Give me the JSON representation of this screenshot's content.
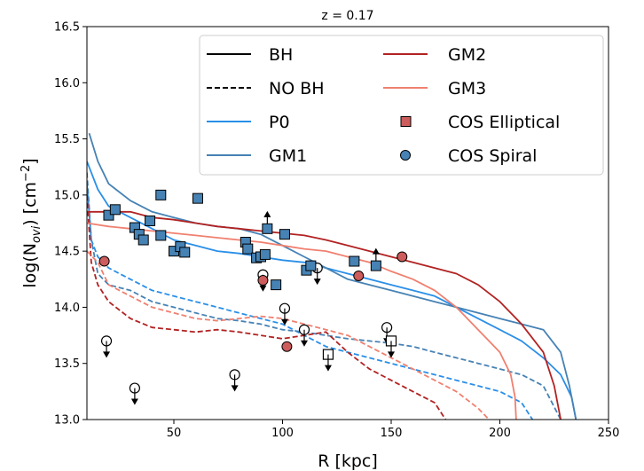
{
  "chart_data": {
    "type": "line",
    "title": "z = 0.17",
    "xlabel": "R [kpc]",
    "ylabel_parts": [
      "log(N",
      "ovi",
      ") [cm",
      "−2",
      "]"
    ],
    "xlim": [
      10,
      250
    ],
    "ylim": [
      13.0,
      16.5
    ],
    "xticks": [
      50,
      100,
      150,
      200,
      250
    ],
    "yticks": [
      13.0,
      13.5,
      14.0,
      14.5,
      15.0,
      15.5,
      16.0,
      16.5
    ],
    "ytick_labels": [
      "13.0",
      "13.5",
      "14.0",
      "14.5",
      "15.0",
      "15.5",
      "16.0",
      "16.5"
    ],
    "grid": false,
    "legend_position": "top-right",
    "legend": [
      {
        "label": "BH",
        "kind": "line-solid",
        "color": "#000000"
      },
      {
        "label": "NO BH",
        "kind": "line-dashed",
        "color": "#000000"
      },
      {
        "label": "P0",
        "kind": "line-solid",
        "color": "#2a8fe8"
      },
      {
        "label": "GM1",
        "kind": "line-solid",
        "color": "#4682b4"
      },
      {
        "label": "GM2",
        "kind": "line-solid",
        "color": "#b22222"
      },
      {
        "label": "GM3",
        "kind": "line-solid",
        "color": "#f08070"
      },
      {
        "label": "COS Elliptical",
        "kind": "square",
        "color": "#cd5c5c"
      },
      {
        "label": "COS Spiral",
        "kind": "circle",
        "color": "#4682b4"
      }
    ],
    "series": [
      {
        "name": "P0",
        "style": "solid",
        "color": "#2a8fe8",
        "points": [
          [
            10,
            15.3
          ],
          [
            15,
            15.05
          ],
          [
            20,
            14.9
          ],
          [
            30,
            14.8
          ],
          [
            40,
            14.7
          ],
          [
            50,
            14.6
          ],
          [
            60,
            14.55
          ],
          [
            70,
            14.5
          ],
          [
            80,
            14.48
          ],
          [
            90,
            14.45
          ],
          [
            100,
            14.42
          ],
          [
            110,
            14.4
          ],
          [
            120,
            14.35
          ],
          [
            130,
            14.3
          ],
          [
            140,
            14.25
          ],
          [
            150,
            14.2
          ],
          [
            160,
            14.15
          ],
          [
            170,
            14.1
          ],
          [
            180,
            14.0
          ],
          [
            190,
            13.9
          ],
          [
            200,
            13.8
          ],
          [
            210,
            13.7
          ],
          [
            220,
            13.55
          ],
          [
            228,
            13.4
          ],
          [
            233,
            13.2
          ],
          [
            235,
            13.0
          ]
        ]
      },
      {
        "name": "P0",
        "style": "dashed",
        "color": "#2a8fe8",
        "points": [
          [
            10,
            15.1
          ],
          [
            12,
            14.6
          ],
          [
            15,
            14.45
          ],
          [
            20,
            14.35
          ],
          [
            30,
            14.25
          ],
          [
            40,
            14.15
          ],
          [
            50,
            14.1
          ],
          [
            60,
            14.05
          ],
          [
            70,
            14.0
          ],
          [
            80,
            13.95
          ],
          [
            90,
            13.9
          ],
          [
            100,
            13.85
          ],
          [
            110,
            13.75
          ],
          [
            120,
            13.65
          ],
          [
            130,
            13.6
          ],
          [
            140,
            13.55
          ],
          [
            150,
            13.5
          ],
          [
            160,
            13.45
          ],
          [
            170,
            13.4
          ],
          [
            180,
            13.35
          ],
          [
            190,
            13.3
          ],
          [
            200,
            13.25
          ],
          [
            210,
            13.15
          ],
          [
            215,
            13.0
          ]
        ]
      },
      {
        "name": "GM1",
        "style": "solid",
        "color": "#4682b4",
        "points": [
          [
            11,
            15.55
          ],
          [
            15,
            15.3
          ],
          [
            20,
            15.1
          ],
          [
            30,
            14.95
          ],
          [
            40,
            14.85
          ],
          [
            50,
            14.8
          ],
          [
            60,
            14.75
          ],
          [
            70,
            14.72
          ],
          [
            80,
            14.7
          ],
          [
            90,
            14.65
          ],
          [
            100,
            14.55
          ],
          [
            110,
            14.45
          ],
          [
            120,
            14.35
          ],
          [
            130,
            14.25
          ],
          [
            140,
            14.2
          ],
          [
            150,
            14.15
          ],
          [
            160,
            14.1
          ],
          [
            170,
            14.05
          ],
          [
            180,
            14.0
          ],
          [
            190,
            13.95
          ],
          [
            200,
            13.9
          ],
          [
            210,
            13.85
          ],
          [
            220,
            13.8
          ],
          [
            228,
            13.6
          ],
          [
            232,
            13.3
          ],
          [
            235,
            13.0
          ]
        ]
      },
      {
        "name": "GM1",
        "style": "dashed",
        "color": "#4682b4",
        "points": [
          [
            10,
            15.2
          ],
          [
            12,
            14.6
          ],
          [
            15,
            14.3
          ],
          [
            20,
            14.2
          ],
          [
            30,
            14.15
          ],
          [
            40,
            14.05
          ],
          [
            50,
            14.0
          ],
          [
            60,
            13.95
          ],
          [
            70,
            13.9
          ],
          [
            80,
            13.88
          ],
          [
            90,
            13.85
          ],
          [
            100,
            13.8
          ],
          [
            110,
            13.78
          ],
          [
            120,
            13.75
          ],
          [
            130,
            13.72
          ],
          [
            140,
            13.7
          ],
          [
            150,
            13.68
          ],
          [
            160,
            13.65
          ],
          [
            170,
            13.6
          ],
          [
            180,
            13.55
          ],
          [
            190,
            13.5
          ],
          [
            200,
            13.45
          ],
          [
            210,
            13.4
          ],
          [
            220,
            13.3
          ],
          [
            228,
            13.0
          ]
        ]
      },
      {
        "name": "GM2",
        "style": "solid",
        "color": "#b22222",
        "points": [
          [
            10,
            14.85
          ],
          [
            20,
            14.85
          ],
          [
            30,
            14.85
          ],
          [
            40,
            14.8
          ],
          [
            50,
            14.78
          ],
          [
            60,
            14.75
          ],
          [
            70,
            14.72
          ],
          [
            80,
            14.7
          ],
          [
            90,
            14.68
          ],
          [
            100,
            14.66
          ],
          [
            110,
            14.64
          ],
          [
            120,
            14.6
          ],
          [
            130,
            14.55
          ],
          [
            140,
            14.5
          ],
          [
            150,
            14.45
          ],
          [
            160,
            14.4
          ],
          [
            170,
            14.35
          ],
          [
            180,
            14.3
          ],
          [
            190,
            14.2
          ],
          [
            200,
            14.05
          ],
          [
            210,
            13.85
          ],
          [
            220,
            13.6
          ],
          [
            225,
            13.3
          ],
          [
            228,
            13.0
          ]
        ]
      },
      {
        "name": "GM2",
        "style": "dashed",
        "color": "#b22222",
        "points": [
          [
            10,
            15.0
          ],
          [
            12,
            14.4
          ],
          [
            15,
            14.2
          ],
          [
            20,
            14.05
          ],
          [
            30,
            13.9
          ],
          [
            40,
            13.82
          ],
          [
            50,
            13.8
          ],
          [
            60,
            13.78
          ],
          [
            70,
            13.8
          ],
          [
            80,
            13.78
          ],
          [
            90,
            13.75
          ],
          [
            100,
            13.72
          ],
          [
            110,
            13.75
          ],
          [
            120,
            13.78
          ],
          [
            130,
            13.6
          ],
          [
            140,
            13.45
          ],
          [
            150,
            13.35
          ],
          [
            160,
            13.25
          ],
          [
            170,
            13.15
          ],
          [
            175,
            13.0
          ]
        ]
      },
      {
        "name": "GM3",
        "style": "solid",
        "color": "#f08070",
        "points": [
          [
            10,
            14.75
          ],
          [
            20,
            14.72
          ],
          [
            30,
            14.7
          ],
          [
            40,
            14.68
          ],
          [
            50,
            14.66
          ],
          [
            60,
            14.64
          ],
          [
            70,
            14.62
          ],
          [
            80,
            14.6
          ],
          [
            90,
            14.58
          ],
          [
            100,
            14.55
          ],
          [
            110,
            14.52
          ],
          [
            120,
            14.5
          ],
          [
            130,
            14.45
          ],
          [
            140,
            14.4
          ],
          [
            150,
            14.32
          ],
          [
            160,
            14.25
          ],
          [
            170,
            14.15
          ],
          [
            180,
            14.0
          ],
          [
            190,
            13.8
          ],
          [
            200,
            13.6
          ],
          [
            205,
            13.4
          ],
          [
            207,
            13.2
          ],
          [
            207.5,
            13.0
          ]
        ]
      },
      {
        "name": "GM3",
        "style": "dashed",
        "color": "#f08070",
        "points": [
          [
            10,
            14.5
          ],
          [
            15,
            14.4
          ],
          [
            20,
            14.2
          ],
          [
            30,
            14.1
          ],
          [
            40,
            14.0
          ],
          [
            50,
            13.95
          ],
          [
            60,
            13.9
          ],
          [
            70,
            13.88
          ],
          [
            80,
            13.9
          ],
          [
            90,
            13.92
          ],
          [
            100,
            13.9
          ],
          [
            110,
            13.85
          ],
          [
            120,
            13.8
          ],
          [
            130,
            13.75
          ],
          [
            140,
            13.65
          ],
          [
            150,
            13.55
          ],
          [
            160,
            13.45
          ],
          [
            170,
            13.35
          ],
          [
            180,
            13.25
          ],
          [
            190,
            13.1
          ],
          [
            195,
            13.0
          ]
        ]
      }
    ],
    "cos_spiral": [
      [
        20,
        14.82
      ],
      [
        23,
        14.87
      ],
      [
        32,
        14.71
      ],
      [
        34,
        14.65
      ],
      [
        36,
        14.6
      ],
      [
        39,
        14.77
      ],
      [
        44,
        14.64
      ],
      [
        44,
        15.0
      ],
      [
        50,
        14.5
      ],
      [
        53,
        14.54
      ],
      [
        55,
        14.49
      ],
      [
        61,
        14.97
      ],
      [
        83,
        14.58
      ],
      [
        84,
        14.52
      ],
      [
        88,
        14.44
      ],
      [
        90,
        14.45
      ],
      [
        92,
        14.47
      ],
      [
        93,
        14.7
      ],
      [
        97,
        14.2
      ],
      [
        101,
        14.65
      ],
      [
        111,
        14.33
      ],
      [
        113,
        14.37
      ],
      [
        133,
        14.41
      ],
      [
        143,
        14.37
      ]
    ],
    "cos_spiral_lower_limit_x": [
      93,
      143
    ],
    "cos_elliptical": [
      [
        18,
        14.41
      ],
      [
        91,
        14.24
      ],
      [
        102,
        13.65
      ],
      [
        135,
        14.28
      ],
      [
        155,
        14.45
      ]
    ],
    "upper_limits": [
      {
        "x": 19,
        "y": 13.7,
        "shape": "circle"
      },
      {
        "x": 32,
        "y": 13.28,
        "shape": "circle"
      },
      {
        "x": 78,
        "y": 13.4,
        "shape": "circle"
      },
      {
        "x": 91,
        "y": 14.29,
        "shape": "circle"
      },
      {
        "x": 101,
        "y": 13.99,
        "shape": "circle"
      },
      {
        "x": 110,
        "y": 13.8,
        "shape": "circle"
      },
      {
        "x": 116,
        "y": 14.35,
        "shape": "circle"
      },
      {
        "x": 148,
        "y": 13.82,
        "shape": "circle"
      },
      {
        "x": 121,
        "y": 13.58,
        "shape": "square"
      },
      {
        "x": 150,
        "y": 13.7,
        "shape": "square"
      }
    ]
  }
}
